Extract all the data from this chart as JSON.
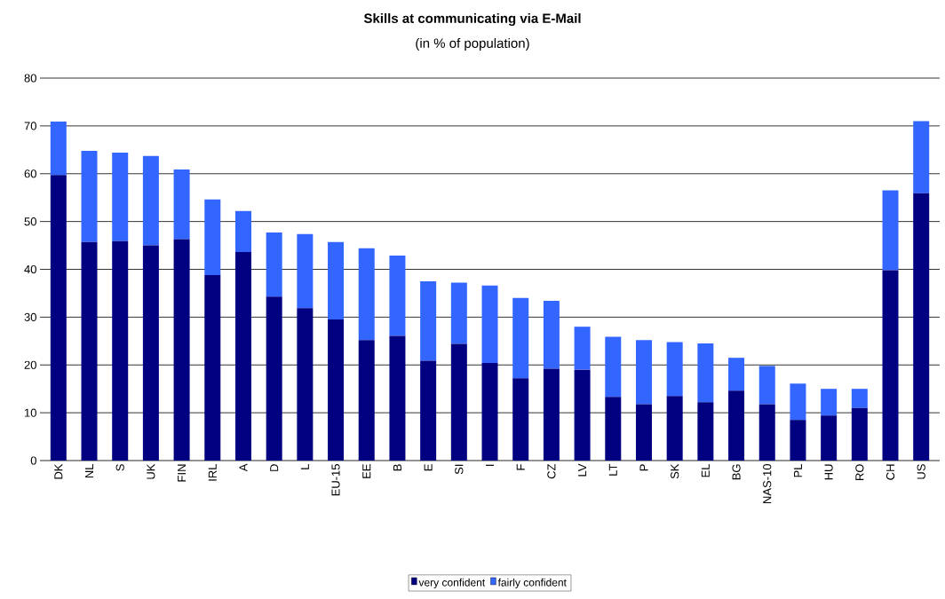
{
  "chart_data": {
    "type": "bar",
    "stacked": true,
    "title": "Skills at communicating via E-Mail",
    "subtitle": "(in % of population)",
    "categories": [
      "DK",
      "NL",
      "S",
      "UK",
      "FIN",
      "IRL",
      "A",
      "D",
      "L",
      "EU-15",
      "EE",
      "B",
      "E",
      "SI",
      "I",
      "F",
      "CZ",
      "LV",
      "LT",
      "P",
      "SK",
      "EL",
      "BG",
      "NAS-10",
      "PL",
      "HU",
      "RO",
      "CH",
      "US"
    ],
    "series": [
      {
        "name": "very confident",
        "color": "#000080",
        "values": [
          59.7,
          45.7,
          45.9,
          45.0,
          46.3,
          38.8,
          43.6,
          34.3,
          31.9,
          29.5,
          25.2,
          26.1,
          20.9,
          24.4,
          20.4,
          17.2,
          19.2,
          19.0,
          13.3,
          11.8,
          13.5,
          12.2,
          14.6,
          11.8,
          8.5,
          9.4,
          11.0,
          39.8,
          55.9
        ]
      },
      {
        "name": "fairly confident",
        "color": "#3366ff",
        "values": [
          11.2,
          19.1,
          18.5,
          18.7,
          14.6,
          15.8,
          8.6,
          13.4,
          15.5,
          16.2,
          19.2,
          16.8,
          16.6,
          12.8,
          16.2,
          16.8,
          14.2,
          9.0,
          12.6,
          13.4,
          11.3,
          12.3,
          6.9,
          8.0,
          7.6,
          5.6,
          4.0,
          16.7,
          15.1
        ]
      }
    ],
    "ylim": [
      0,
      80
    ],
    "yticks": [
      0,
      10,
      20,
      30,
      40,
      50,
      60,
      70,
      80
    ],
    "grid": "y",
    "legend": "bottom"
  }
}
